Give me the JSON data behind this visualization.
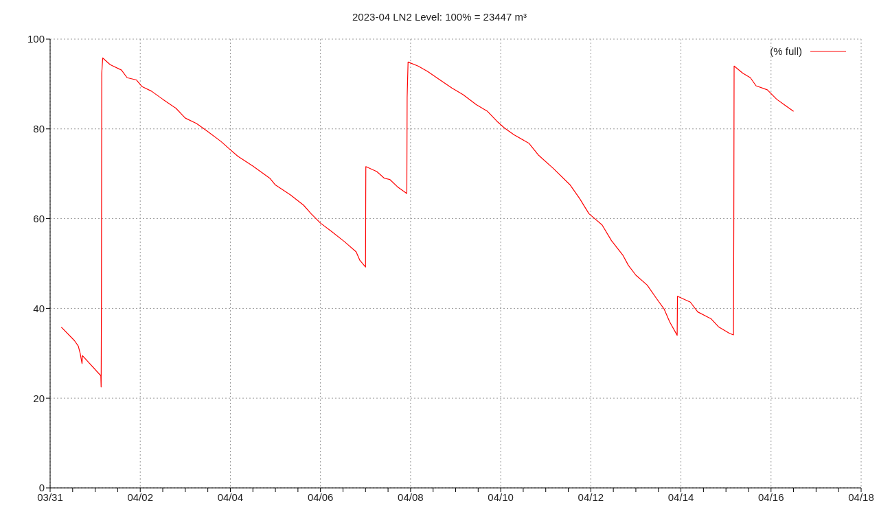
{
  "chart_data": {
    "type": "line",
    "title": "2023-04 LN2 Level: 100% = 23447 m³",
    "x": [
      "2023-03-31T06:00",
      "2023-03-31T13:00",
      "2023-03-31T15:00",
      "2023-03-31T16:00",
      "2023-03-31T17:00",
      "2023-03-31T17:10",
      "2023-04-01T03:00",
      "2023-04-01T03:10",
      "2023-04-01T03:20",
      "2023-04-01T03:30",
      "2023-04-01T04:00",
      "2023-04-01T08:00",
      "2023-04-01T14:00",
      "2023-04-01T17:00",
      "2023-04-01T22:00",
      "2023-04-02T01:00",
      "2023-04-02T06:00",
      "2023-04-02T12:00",
      "2023-04-02T19:00",
      "2023-04-03T00:00",
      "2023-04-03T06:00",
      "2023-04-03T12:00",
      "2023-04-03T19:00",
      "2023-04-03T23:00",
      "2023-04-04T04:00",
      "2023-04-04T12:00",
      "2023-04-04T21:00",
      "2023-04-05T00:00",
      "2023-04-05T08:00",
      "2023-04-05T15:00",
      "2023-04-05T19:00",
      "2023-04-06T00:00",
      "2023-04-06T06:00",
      "2023-04-06T13:00",
      "2023-04-06T19:00",
      "2023-04-06T21:00",
      "2023-04-07T00:00",
      "2023-04-07T00:10",
      "2023-04-07T06:00",
      "2023-04-07T10:00",
      "2023-04-07T13:00",
      "2023-04-07T17:00",
      "2023-04-07T22:00",
      "2023-04-07T22:10",
      "2023-04-07T22:40",
      "2023-04-08T04:00",
      "2023-04-08T09:00",
      "2023-04-08T15:00",
      "2023-04-08T22:00",
      "2023-04-09T04:00",
      "2023-04-09T11:00",
      "2023-04-09T17:00",
      "2023-04-09T22:00",
      "2023-04-10T02:00",
      "2023-04-10T07:00",
      "2023-04-10T15:00",
      "2023-04-10T20:00",
      "2023-04-11T04:00",
      "2023-04-11T13:00",
      "2023-04-11T18:00",
      "2023-04-11T23:00",
      "2023-04-12T06:00",
      "2023-04-12T11:00",
      "2023-04-12T17:00",
      "2023-04-12T20:00",
      "2023-04-13T00:00",
      "2023-04-13T06:00",
      "2023-04-13T11:00",
      "2023-04-13T15:00",
      "2023-04-13T18:00",
      "2023-04-13T22:00",
      "2023-04-13T22:10",
      "2023-04-14T05:00",
      "2023-04-14T09:00",
      "2023-04-14T16:00",
      "2023-04-14T20:00",
      "2023-04-15T02:00",
      "2023-04-15T04:00",
      "2023-04-15T04:10",
      "2023-04-15T04:20",
      "2023-04-15T09:00",
      "2023-04-15T13:00",
      "2023-04-15T16:00",
      "2023-04-15T22:00",
      "2023-04-16T03:00",
      "2023-04-16T07:00",
      "2023-04-16T12:00"
    ],
    "series": [
      {
        "name": "(% full)",
        "color": "#ff0000",
        "values": [
          35.8,
          32.8,
          31.6,
          30.0,
          27.7,
          29.5,
          25.0,
          22.5,
          42.0,
          92.4,
          95.8,
          94.3,
          93.1,
          91.4,
          90.9,
          89.4,
          88.4,
          86.6,
          84.6,
          82.4,
          81.2,
          79.4,
          77.2,
          75.7,
          73.9,
          71.7,
          69.0,
          67.5,
          65.3,
          63.0,
          61.1,
          59.0,
          57.1,
          54.8,
          52.6,
          50.7,
          49.2,
          71.6,
          70.5,
          69.0,
          68.7,
          67.1,
          65.6,
          87.0,
          94.9,
          94.0,
          92.8,
          91.1,
          89.1,
          87.6,
          85.4,
          83.9,
          81.7,
          80.2,
          78.7,
          76.8,
          74.2,
          71.2,
          67.5,
          64.5,
          61.1,
          58.6,
          55.1,
          51.9,
          49.6,
          47.4,
          45.2,
          42.2,
          39.9,
          37.0,
          34.0,
          42.7,
          41.4,
          39.2,
          37.7,
          35.9,
          34.4,
          34.1,
          57.7,
          94.0,
          92.4,
          91.4,
          89.6,
          88.7,
          86.6,
          85.4,
          83.9
        ]
      }
    ],
    "xlim": [
      "2023-03-31",
      "2023-04-18"
    ],
    "xticks": [
      {
        "value": "2023-03-31",
        "label": "03/31"
      },
      {
        "value": "2023-03-31T12:00",
        "label": null
      },
      {
        "value": "2023-04-01",
        "label": null
      },
      {
        "value": "2023-04-01T12:00",
        "label": null
      },
      {
        "value": "2023-04-02",
        "label": "04/02"
      },
      {
        "value": "2023-04-02T12:00",
        "label": null
      },
      {
        "value": "2023-04-03",
        "label": null
      },
      {
        "value": "2023-04-03T12:00",
        "label": null
      },
      {
        "value": "2023-04-04",
        "label": "04/04"
      },
      {
        "value": "2023-04-04T12:00",
        "label": null
      },
      {
        "value": "2023-04-05",
        "label": null
      },
      {
        "value": "2023-04-05T12:00",
        "label": null
      },
      {
        "value": "2023-04-06",
        "label": "04/06"
      },
      {
        "value": "2023-04-06T12:00",
        "label": null
      },
      {
        "value": "2023-04-07",
        "label": null
      },
      {
        "value": "2023-04-07T12:00",
        "label": null
      },
      {
        "value": "2023-04-08",
        "label": "04/08"
      },
      {
        "value": "2023-04-08T12:00",
        "label": null
      },
      {
        "value": "2023-04-09",
        "label": null
      },
      {
        "value": "2023-04-09T12:00",
        "label": null
      },
      {
        "value": "2023-04-10",
        "label": "04/10"
      },
      {
        "value": "2023-04-10T12:00",
        "label": null
      },
      {
        "value": "2023-04-11",
        "label": null
      },
      {
        "value": "2023-04-11T12:00",
        "label": null
      },
      {
        "value": "2023-04-12",
        "label": "04/12"
      },
      {
        "value": "2023-04-12T12:00",
        "label": null
      },
      {
        "value": "2023-04-13",
        "label": null
      },
      {
        "value": "2023-04-13T12:00",
        "label": null
      },
      {
        "value": "2023-04-14",
        "label": "04/14"
      },
      {
        "value": "2023-04-14T12:00",
        "label": null
      },
      {
        "value": "2023-04-15",
        "label": null
      },
      {
        "value": "2023-04-15T12:00",
        "label": null
      },
      {
        "value": "2023-04-16",
        "label": "04/16"
      },
      {
        "value": "2023-04-16T12:00",
        "label": null
      },
      {
        "value": "2023-04-17",
        "label": null
      },
      {
        "value": "2023-04-17T12:00",
        "label": null
      },
      {
        "value": "2023-04-18",
        "label": "04/18"
      }
    ],
    "ylim": [
      0,
      100
    ],
    "yticks": [
      0,
      20,
      40,
      60,
      80,
      100
    ],
    "grid": true,
    "legend": "top right"
  }
}
